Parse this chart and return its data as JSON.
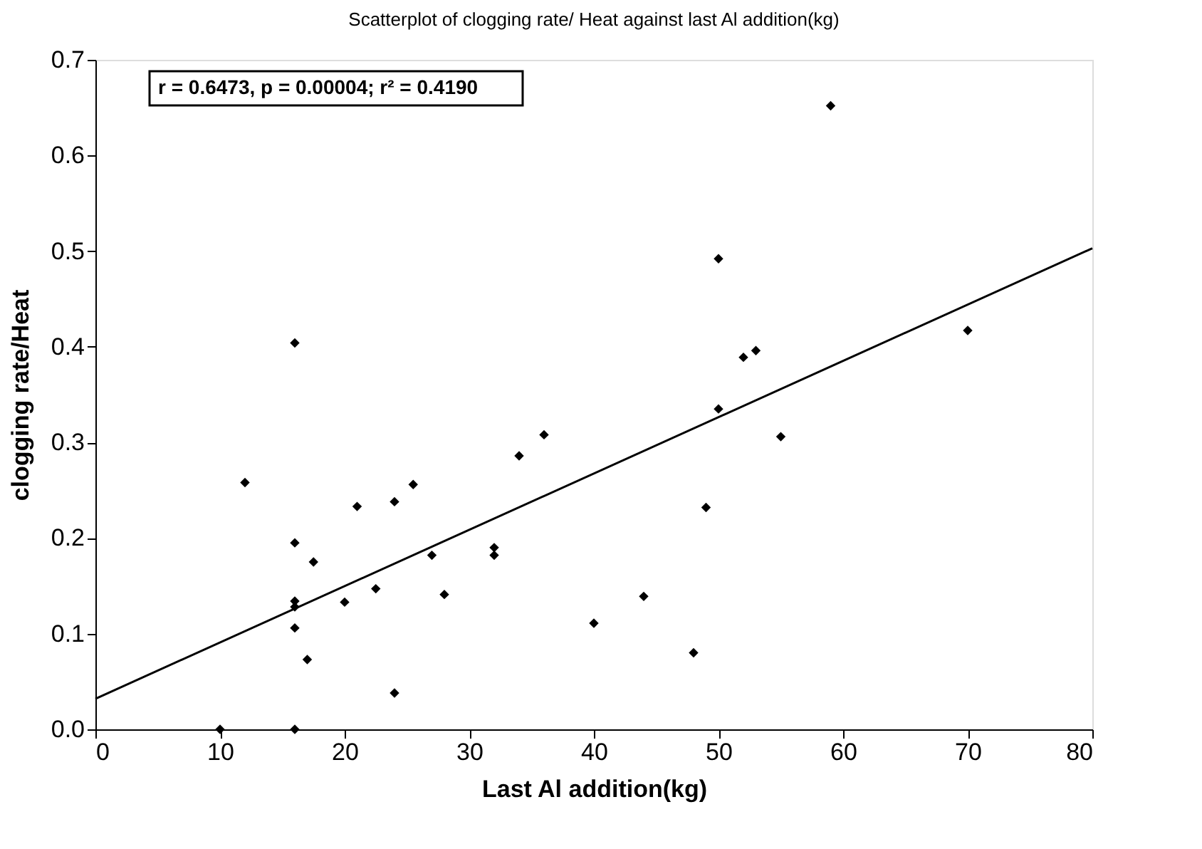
{
  "chart_data": {
    "type": "scatter",
    "title": "Scatterplot of clogging rate/ Heat against last Al addition(kg)",
    "xlabel": "Last Al addition(kg)",
    "ylabel": "clogging rate/Heat",
    "annotations": [
      "r = 0.6473, p = 0.00004; r² = 0.4190"
    ],
    "series": [
      {
        "color": "#000000",
        "marker": "diamond",
        "x": [
          10,
          12,
          16,
          16,
          16,
          16,
          16,
          16,
          17,
          17.5,
          20,
          21,
          22.5,
          24,
          24,
          25.5,
          27,
          28,
          32,
          32,
          34,
          36,
          40,
          44,
          48,
          49,
          50,
          50,
          52,
          53,
          55,
          59,
          70
        ],
        "values": [
          0,
          0.258,
          0.404,
          0.195,
          0.134,
          0.128,
          0.106,
          0,
          0.073,
          0.175,
          0.133,
          0.233,
          0.147,
          0.238,
          0.038,
          0.256,
          0.182,
          0.141,
          0.19,
          0.182,
          0.286,
          0.308,
          0.111,
          0.139,
          0.08,
          0.232,
          0.492,
          0.335,
          0.389,
          0.396,
          0.306,
          0.652,
          0.417
        ]
      },
      {
        "type": "line",
        "color": "#000000",
        "x": [
          0,
          80
        ],
        "values": [
          0.032,
          0.503
        ]
      }
    ],
    "xlim": [
      0,
      80
    ],
    "xticks": [
      0,
      10,
      20,
      30,
      40,
      50,
      60,
      70,
      80
    ],
    "ylim": [
      0,
      0.7
    ],
    "yticks": [
      {
        "value": 0,
        "label": "0.0"
      },
      0.1,
      0.2,
      0.3,
      0.4,
      0.5,
      0.6,
      0.7
    ],
    "grid": false
  }
}
